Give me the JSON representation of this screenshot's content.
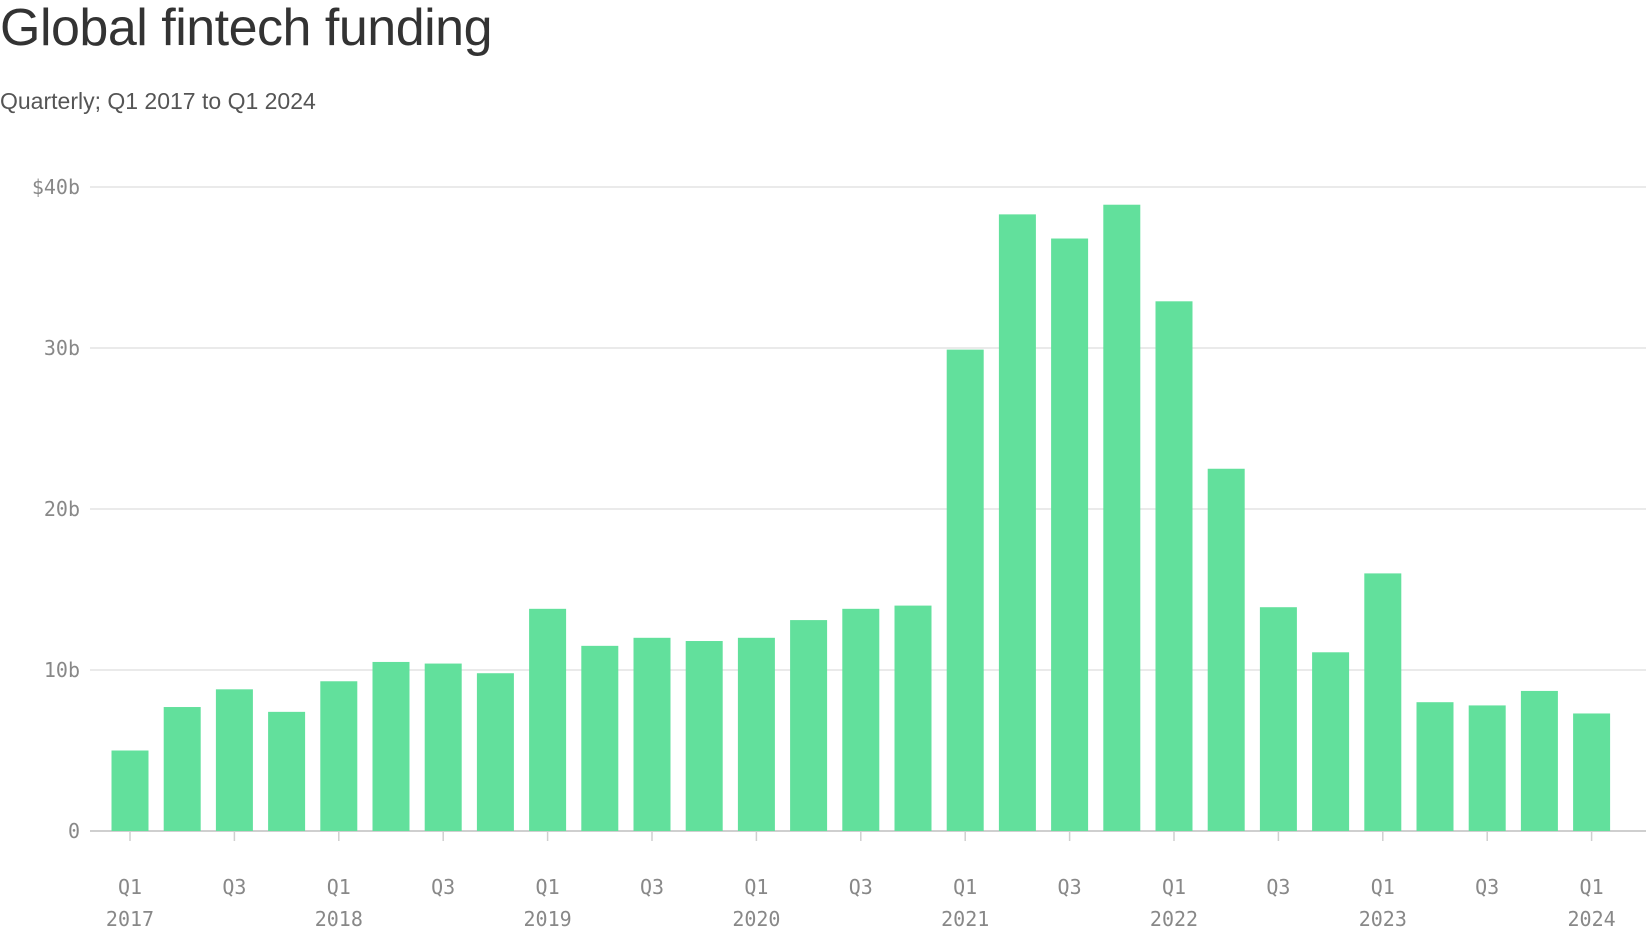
{
  "title": "Global fintech funding",
  "subtitle": "Quarterly; Q1 2017 to Q1 2024",
  "colors": {
    "bar": "#62e09c",
    "grid": "#e3e3e3",
    "axis_text": "#888888"
  },
  "chart_data": {
    "type": "bar",
    "title": "Global fintech funding",
    "subtitle": "Quarterly; Q1 2017 to Q1 2024",
    "xlabel": "",
    "ylabel": "",
    "ylim": [
      0,
      40
    ],
    "y_ticks": [
      {
        "value": 0,
        "label": "0"
      },
      {
        "value": 10,
        "label": "10b"
      },
      {
        "value": 20,
        "label": "20b"
      },
      {
        "value": 30,
        "label": "30b"
      },
      {
        "value": 40,
        "label": "$40b"
      }
    ],
    "grid": true,
    "categories": [
      "Q1 2017",
      "Q2 2017",
      "Q3 2017",
      "Q4 2017",
      "Q1 2018",
      "Q2 2018",
      "Q3 2018",
      "Q4 2018",
      "Q1 2019",
      "Q2 2019",
      "Q3 2019",
      "Q4 2019",
      "Q1 2020",
      "Q2 2020",
      "Q3 2020",
      "Q4 2020",
      "Q1 2021",
      "Q2 2021",
      "Q3 2021",
      "Q4 2021",
      "Q1 2022",
      "Q2 2022",
      "Q3 2022",
      "Q4 2022",
      "Q1 2023",
      "Q2 2023",
      "Q3 2023",
      "Q4 2023",
      "Q1 2024"
    ],
    "values": [
      5.0,
      7.7,
      8.8,
      7.4,
      9.3,
      10.5,
      10.4,
      9.8,
      13.8,
      11.5,
      12.0,
      11.8,
      12.0,
      13.1,
      13.8,
      14.0,
      29.9,
      38.3,
      36.8,
      38.9,
      32.9,
      22.5,
      13.9,
      11.1,
      16.0,
      8.0,
      7.8,
      8.7,
      7.3
    ],
    "x_tick_labels": [
      {
        "index": 0,
        "quarter": "Q1",
        "year": "2017"
      },
      {
        "index": 2,
        "quarter": "Q3",
        "year": ""
      },
      {
        "index": 4,
        "quarter": "Q1",
        "year": "2018"
      },
      {
        "index": 6,
        "quarter": "Q3",
        "year": ""
      },
      {
        "index": 8,
        "quarter": "Q1",
        "year": "2019"
      },
      {
        "index": 10,
        "quarter": "Q3",
        "year": ""
      },
      {
        "index": 12,
        "quarter": "Q1",
        "year": "2020"
      },
      {
        "index": 14,
        "quarter": "Q3",
        "year": ""
      },
      {
        "index": 16,
        "quarter": "Q1",
        "year": "2021"
      },
      {
        "index": 18,
        "quarter": "Q3",
        "year": ""
      },
      {
        "index": 20,
        "quarter": "Q1",
        "year": "2022"
      },
      {
        "index": 22,
        "quarter": "Q3",
        "year": ""
      },
      {
        "index": 24,
        "quarter": "Q1",
        "year": "2023"
      },
      {
        "index": 26,
        "quarter": "Q3",
        "year": ""
      },
      {
        "index": 28,
        "quarter": "Q1",
        "year": "2024"
      }
    ]
  }
}
